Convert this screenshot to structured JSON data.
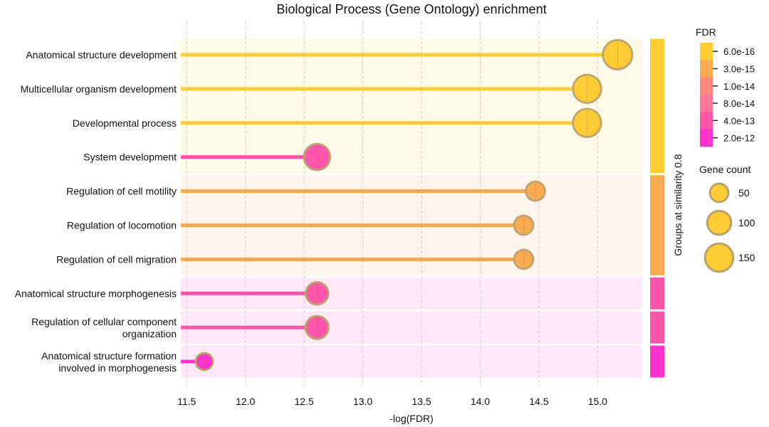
{
  "chart_data": {
    "type": "lollipop",
    "title": "Biological Process (Gene Ontology) enrichment",
    "xlabel": "-log(FDR)",
    "xlim": [
      11.45,
      15.38
    ],
    "xticks": [
      11.5,
      12.0,
      12.5,
      13.0,
      13.5,
      14.0,
      14.5,
      15.0
    ],
    "grid": "vertical dashed",
    "group_axis_label": "Groups at similarity 0.8",
    "categories": [
      [
        "Anatomical structure development"
      ],
      [
        "Multicellular organism development"
      ],
      [
        "Developmental process"
      ],
      [
        "System development"
      ],
      [
        "Regulation of cell motility"
      ],
      [
        "Regulation of locomotion"
      ],
      [
        "Regulation of cell migration"
      ],
      [
        "Anatomical structure morphogenesis"
      ],
      [
        "Regulation of cellular component",
        "organization"
      ],
      [
        "Anatomical structure formation",
        "involved in morphogenesis"
      ]
    ],
    "values": [
      15.17,
      14.91,
      14.91,
      12.61,
      14.47,
      14.37,
      14.37,
      12.61,
      12.61,
      11.65
    ],
    "gene_counts": [
      165,
      150,
      150,
      125,
      55,
      55,
      55,
      85,
      90,
      40
    ],
    "colors": [
      "#FFCC33",
      "#FFCC33",
      "#FFCC33",
      "#FF55AA",
      "#FBAB52",
      "#FBAB52",
      "#FBAB52",
      "#FF55AA",
      "#FF55AA",
      "#FF33CC"
    ],
    "groups": [
      {
        "rows": [
          0,
          3
        ],
        "bg": "#FFF9EA",
        "bar": "#FFCC33"
      },
      {
        "rows": [
          4,
          6
        ],
        "bg": "#FDF5EC",
        "bar": "#FBAB52"
      },
      {
        "rows": [
          7,
          7
        ],
        "bg": "#FDE9F5",
        "bar": "#FF55AA"
      },
      {
        "rows": [
          8,
          8
        ],
        "bg": "#FDE9F5",
        "bar": "#FF55AA"
      },
      {
        "rows": [
          9,
          9
        ],
        "bg": "#FDE9F5",
        "bar": "#FF33CC"
      }
    ],
    "legend_fdr": {
      "title": "FDR",
      "colors": [
        "#FFCC33",
        "#FBAB52",
        "#FF8A80",
        "#FF7799",
        "#FF55AA",
        "#FF33CC"
      ],
      "labels": [
        "6.0e-16",
        "3.0e-15",
        "1.0e-14",
        "8.0e-14",
        "4.0e-13",
        "2.0e-12"
      ]
    },
    "legend_size": {
      "title": "Gene count",
      "values": [
        50,
        100,
        150
      ]
    }
  }
}
